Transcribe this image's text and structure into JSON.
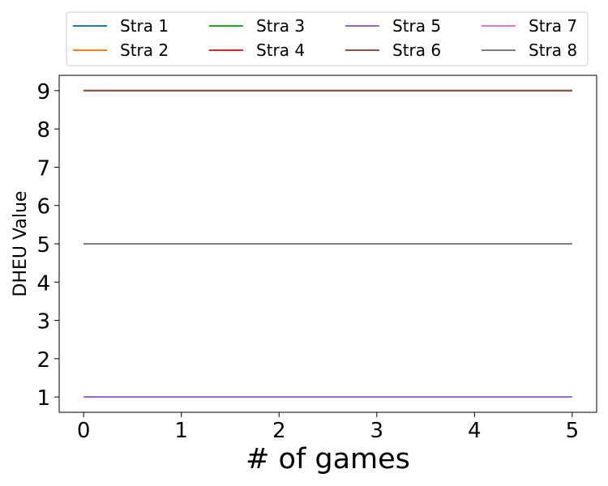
{
  "chart_data": {
    "type": "line",
    "xlabel": "# of games",
    "ylabel": "DHEU Value",
    "xlim": [
      -0.25,
      5.25
    ],
    "ylim": [
      0.6,
      9.4
    ],
    "xticks": [
      0,
      1,
      2,
      3,
      4,
      5
    ],
    "yticks": [
      1,
      2,
      3,
      4,
      5,
      6,
      7,
      8,
      9
    ],
    "xtick_labels": [
      "0",
      "1",
      "2",
      "3",
      "4",
      "5"
    ],
    "ytick_labels": [
      "1",
      "2",
      "3",
      "4",
      "5",
      "6",
      "7",
      "8",
      "9"
    ],
    "grid": false,
    "legend_placement": "top-center, 4 columns",
    "x": [
      0,
      1,
      2,
      3,
      4,
      5
    ],
    "series": [
      {
        "name": "Stra 1",
        "color": "#1f77b4",
        "values": [
          5,
          5,
          5,
          5,
          5,
          5
        ]
      },
      {
        "name": "Stra 2",
        "color": "#ff7f0e",
        "values": [
          5,
          5,
          5,
          5,
          5,
          5
        ]
      },
      {
        "name": "Stra 3",
        "color": "#2ca02c",
        "values": [
          9,
          9,
          9,
          9,
          9,
          9
        ]
      },
      {
        "name": "Stra 4",
        "color": "#d62728",
        "values": [
          9,
          9,
          9,
          9,
          9,
          9
        ]
      },
      {
        "name": "Stra 5",
        "color": "#9467bd",
        "values": [
          1,
          1,
          1,
          1,
          1,
          1
        ]
      },
      {
        "name": "Stra 6",
        "color": "#8c564b",
        "values": [
          9,
          9,
          9,
          9,
          9,
          9
        ]
      },
      {
        "name": "Stra 7",
        "color": "#e377c2",
        "values": [
          5,
          5,
          5,
          5,
          5,
          5
        ]
      },
      {
        "name": "Stra 8",
        "color": "#7f7f7f",
        "values": [
          5,
          5,
          5,
          5,
          5,
          5
        ]
      }
    ]
  }
}
